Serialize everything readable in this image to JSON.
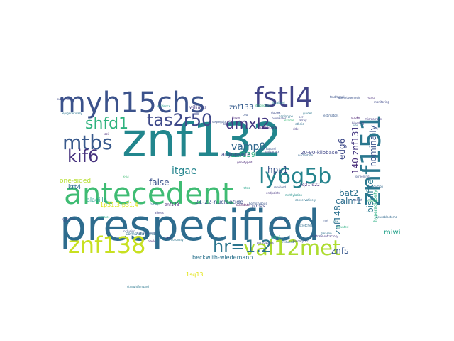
{
  "wordcloud": {
    "words": [
      {
        "text": "znf132",
        "color": "#22868d",
        "rotate": false
      },
      {
        "text": "prespecified",
        "color": "#2e6c8e",
        "rotate": false
      },
      {
        "text": "antecedent",
        "color": "#3fbc73",
        "rotate": false
      },
      {
        "text": "myh15chs",
        "color": "#3b528b",
        "rotate": false
      },
      {
        "text": "fstl4",
        "color": "#404387",
        "rotate": false
      },
      {
        "text": "znf151",
        "color": "#2a778e",
        "rotate": true
      },
      {
        "text": "ly6g5b",
        "color": "#25838d",
        "rotate": false
      },
      {
        "text": "znf138",
        "color": "#c8e020",
        "rotate": false
      },
      {
        "text": "val12met",
        "color": "#addc30",
        "rotate": false
      },
      {
        "text": "mtbs",
        "color": "#38598c",
        "rotate": false
      },
      {
        "text": "kif6",
        "color": "#46327e",
        "rotate": false
      },
      {
        "text": "hr=1.2",
        "color": "#2b758e",
        "rotate": false
      },
      {
        "text": "shfd1",
        "color": "#2db27d",
        "rotate": false
      },
      {
        "text": "tas2r50",
        "color": "#3e4989",
        "rotate": false
      },
      {
        "text": "dmxl2",
        "color": "#453882",
        "rotate": false
      },
      {
        "text": "vamp8",
        "color": "#31688e",
        "rotate": false
      },
      {
        "text": "itgae",
        "color": "#25858e",
        "rotate": false
      },
      {
        "text": "hps1",
        "color": "#39558c",
        "rotate": false
      },
      {
        "text": "false",
        "color": "#3b528b",
        "rotate": false
      },
      {
        "text": "edg6",
        "color": "#3e4a89",
        "rotate": true
      },
      {
        "text": "znf131",
        "color": "#453781",
        "rotate": true
      },
      {
        "text": "140",
        "color": "#4a2e7a",
        "rotate": true
      },
      {
        "text": "nominally",
        "color": "#3a548c",
        "rotate": true
      },
      {
        "text": "bisulfite",
        "color": "#2a788e",
        "rotate": true
      },
      {
        "text": "bat2",
        "color": "#2c718e",
        "rotate": false
      },
      {
        "text": "calm1",
        "color": "#2e6e8e",
        "rotate": false
      },
      {
        "text": "znf148",
        "color": "#2d708e",
        "rotate": true
      },
      {
        "text": "znfs",
        "color": "#38588c",
        "rotate": false
      },
      {
        "text": "miwi",
        "color": "#1fa088",
        "rotate": false
      },
      {
        "text": "znf133",
        "color": "#365c8d",
        "rotate": false
      },
      {
        "text": "znf139",
        "color": "#2ab07f",
        "rotate": false
      },
      {
        "text": "argonaute",
        "color": "#414487",
        "rotate": false
      },
      {
        "text": "one-sided",
        "color": "#b5de2b",
        "rotate": false
      },
      {
        "text": "krt4",
        "color": "#2f6c8e",
        "rotate": false
      },
      {
        "text": "alagille",
        "color": "#1f9f88",
        "rotate": false
      },
      {
        "text": "21-22-nucleotide",
        "color": "#3b518b",
        "rotate": false
      },
      {
        "text": "20-90-kilobase",
        "color": "#404688",
        "rotate": false
      },
      {
        "text": "beckwith-wiedemann",
        "color": "#2c738e",
        "rotate": false
      },
      {
        "text": "hyperadiposity",
        "color": "#27ad81",
        "rotate": true
      },
      {
        "text": "williams",
        "color": "#443a83",
        "rotate": false
      },
      {
        "text": "1q21-q22",
        "color": "#472c7a",
        "rotate": false
      },
      {
        "text": "1p31.3-p31.4",
        "color": "#dde318",
        "rotate": false
      },
      {
        "text": "pimi",
        "color": "#29af7f",
        "rotate": false
      },
      {
        "text": "pirnas",
        "color": "#404588",
        "rotate": false
      },
      {
        "text": "znf143",
        "color": "#482173",
        "rotate": false
      },
      {
        "text": "1sq13",
        "color": "#e2e418",
        "rotate": false
      },
      {
        "text": "computational",
        "color": "#2d708e",
        "rotate": false
      },
      {
        "text": "straightforward",
        "color": "#2a778e",
        "rotate": false
      },
      {
        "text": "subfamilies",
        "color": "#3e4989",
        "rotate": false
      },
      {
        "text": "segregate",
        "color": "#3a538b",
        "rotate": false
      },
      {
        "text": "biomarker",
        "color": "#3f4889",
        "rotate": false
      },
      {
        "text": "endpoints",
        "color": "#463480",
        "rotate": false
      },
      {
        "text": "castrate-refractory",
        "color": "#453882",
        "rotate": false
      },
      {
        "text": "gleason",
        "color": "#2d718e",
        "rotate": false
      },
      {
        "text": "alleles",
        "color": "#433e85",
        "rotate": false
      },
      {
        "text": "mosaics",
        "color": "#22a884",
        "rotate": false
      },
      {
        "text": "candidate",
        "color": "#440154",
        "rotate": false
      },
      {
        "text": "proportional",
        "color": "#482878",
        "rotate": false
      },
      {
        "text": "traditional",
        "color": "#3b528b",
        "rotate": false
      },
      {
        "text": "neuroblastoma",
        "color": "#31688e",
        "rotate": false
      },
      {
        "text": "microarrays",
        "color": "#443983",
        "rotate": false
      },
      {
        "text": "conservatively",
        "color": "#2c728e",
        "rotate": false
      },
      {
        "text": "incidence",
        "color": "#1f9e89",
        "rotate": false
      },
      {
        "text": "dataset",
        "color": "#3e4a89",
        "rotate": false
      },
      {
        "text": "methylation",
        "color": "#21918c",
        "rotate": false
      },
      {
        "text": "resolved",
        "color": "#3b528b",
        "rotate": false
      },
      {
        "text": "participants",
        "color": "#404688",
        "rotate": false
      },
      {
        "text": "stretches",
        "color": "#2e6d8e",
        "rotate": false
      },
      {
        "text": "elevated",
        "color": "#28ae80",
        "rotate": false
      },
      {
        "text": "univariate",
        "color": "#3f4788",
        "rotate": false
      },
      {
        "text": "genotyped",
        "color": "#482576",
        "rotate": false
      },
      {
        "text": "localized",
        "color": "#26828e",
        "rotate": false
      },
      {
        "text": "estimators",
        "color": "#38598c",
        "rotate": false
      },
      {
        "text": "duplex",
        "color": "#3e4c8a",
        "rotate": false
      },
      {
        "text": "nucleotide",
        "color": "#32658e",
        "rotate": false
      },
      {
        "text": "homozygous",
        "color": "#3a548c",
        "rotate": false
      },
      {
        "text": "stroke",
        "color": "#481f70",
        "rotate": false
      },
      {
        "text": "bleeding",
        "color": "#433d84",
        "rotate": false
      },
      {
        "text": "guides",
        "color": "#2a768e",
        "rotate": false
      },
      {
        "text": "cohort",
        "color": "#3c4f8a",
        "rotate": false
      },
      {
        "text": "diagnostic",
        "color": "#2fb47c",
        "rotate": false
      },
      {
        "text": "gametogenesis",
        "color": "#3b528b",
        "rotate": false
      },
      {
        "text": "raised",
        "color": "#472d7b",
        "rotate": false
      },
      {
        "text": "monitoring",
        "color": "#3e4989",
        "rotate": false
      },
      {
        "text": "epigenetically",
        "color": "#2b748e",
        "rotate": false
      },
      {
        "text": "fold",
        "color": "#3fbc73",
        "rotate": false
      },
      {
        "text": "prediction",
        "color": "#31678e",
        "rotate": false
      },
      {
        "text": "screening",
        "color": "#3c4f8a",
        "rotate": false
      },
      {
        "text": "finger",
        "color": "#4b2a7a",
        "rotate": false
      },
      {
        "text": "bleomycin",
        "color": "#3e4a89",
        "rotate": false
      },
      {
        "text": "eligible",
        "color": "#3aba76",
        "rotate": false
      },
      {
        "text": "fine-mapped",
        "color": "#3b528b",
        "rotate": false
      },
      {
        "text": "haplotype",
        "color": "#2c738e",
        "rotate": false
      },
      {
        "text": "black",
        "color": "#482475",
        "rotate": false
      },
      {
        "text": "coronary",
        "color": "#2b758e",
        "rotate": false
      },
      {
        "text": "inclusion",
        "color": "#3c508b",
        "rotate": false
      },
      {
        "text": "primers",
        "color": "#3e4989",
        "rotate": false
      },
      {
        "text": "infarction",
        "color": "#414487",
        "rotate": false
      },
      {
        "text": "reduced",
        "color": "#31688e",
        "rotate": false
      },
      {
        "text": "total",
        "color": "#472f7d",
        "rotate": false
      },
      {
        "text": "ethnic",
        "color": "#2e6f8e",
        "rotate": false
      },
      {
        "text": "ceu",
        "color": "#3a548c",
        "rotate": false
      },
      {
        "text": "ddx",
        "color": "#453882",
        "rotate": false
      },
      {
        "text": "sex",
        "color": "#26818e",
        "rotate": false
      },
      {
        "text": "met",
        "color": "#3b528b",
        "rotate": false
      },
      {
        "text": "rates",
        "color": "#1fa287",
        "rotate": false
      },
      {
        "text": "pcr",
        "color": "#3f4889",
        "rotate": false
      },
      {
        "text": "vas",
        "color": "#2d708e",
        "rotate": false
      },
      {
        "text": "loci",
        "color": "#482878",
        "rotate": false
      },
      {
        "text": "gil",
        "color": "#3e4a89",
        "rotate": false
      },
      {
        "text": "hazard",
        "color": "#3b528b",
        "rotate": false
      },
      {
        "text": "family",
        "color": "#2c728e",
        "rotate": false
      },
      {
        "text": "exome",
        "color": "#36b878",
        "rotate": false
      },
      {
        "text": "array",
        "color": "#404588",
        "rotate": false
      }
    ]
  }
}
